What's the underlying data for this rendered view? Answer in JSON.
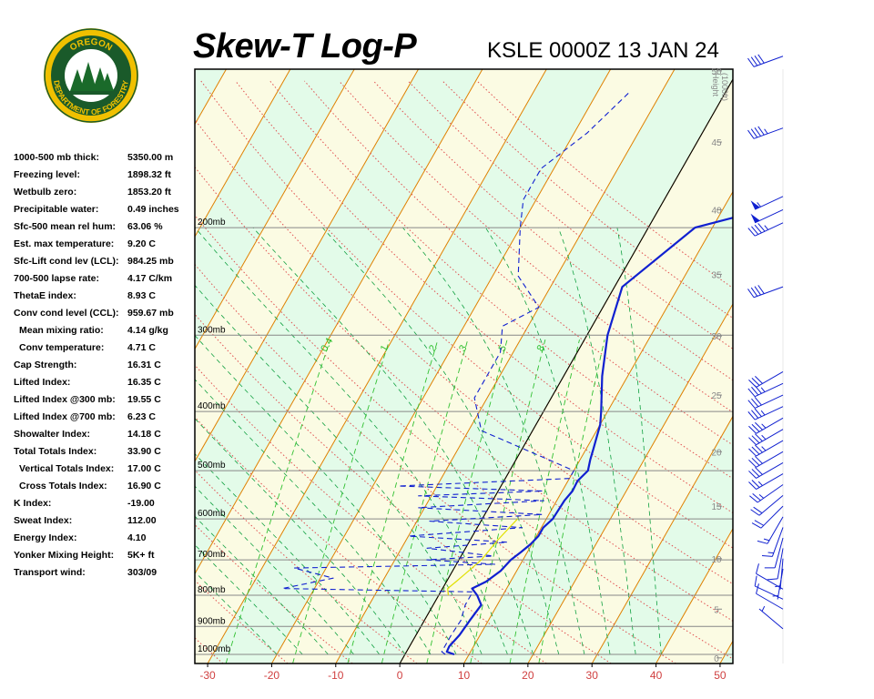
{
  "header": {
    "title": "Skew-T Log-P",
    "station": "KSLE 0000Z 13 JAN 24"
  },
  "logo": {
    "top_text": "OREGON",
    "bottom_text": "DEPARTMENT OF FORESTRY"
  },
  "indices": [
    {
      "label": "1000-500 mb thick:",
      "value": "5350.00 m",
      "indent": false
    },
    {
      "label": "Freezing level:",
      "value": "1898.32 ft",
      "indent": false
    },
    {
      "label": "Wetbulb zero:",
      "value": "1853.20 ft",
      "indent": false
    },
    {
      "label": "Precipitable water:",
      "value": "0.49 inches",
      "indent": false
    },
    {
      "label": "Sfc-500 mean rel hum:",
      "value": "63.06 %",
      "indent": false
    },
    {
      "label": "Est. max temperature:",
      "value": "9.20 C",
      "indent": false
    },
    {
      "label": "Sfc-Lift cond lev (LCL):",
      "value": "984.25 mb",
      "indent": false
    },
    {
      "label": "700-500 lapse rate:",
      "value": "4.17 C/km",
      "indent": false
    },
    {
      "label": "ThetaE index:",
      "value": "8.93 C",
      "indent": false
    },
    {
      "label": "Conv cond level (CCL):",
      "value": "959.67 mb",
      "indent": false
    },
    {
      "label": "Mean mixing ratio:",
      "value": "4.14 g/kg",
      "indent": true
    },
    {
      "label": "Conv temperature:",
      "value": "4.71 C",
      "indent": true
    },
    {
      "label": "Cap Strength:",
      "value": "16.31 C",
      "indent": false
    },
    {
      "label": "Lifted Index:",
      "value": "16.35 C",
      "indent": false
    },
    {
      "label": "Lifted Index @300 mb:",
      "value": "19.55 C",
      "indent": false
    },
    {
      "label": "Lifted Index @700 mb:",
      "value": "6.23 C",
      "indent": false
    },
    {
      "label": "Showalter Index:",
      "value": "14.18 C",
      "indent": false
    },
    {
      "label": "Total Totals Index:",
      "value": "33.90 C",
      "indent": false
    },
    {
      "label": "Vertical Totals Index:",
      "value": "17.00 C",
      "indent": true
    },
    {
      "label": "Cross Totals Index:",
      "value": "16.90 C",
      "indent": true
    },
    {
      "label": "K Index:",
      "value": "-19.00",
      "indent": false
    },
    {
      "label": "Sweat Index:",
      "value": "112.00",
      "indent": false
    },
    {
      "label": "Energy Index:",
      "value": "4.10",
      "indent": false
    },
    {
      "label": "Yonker Mixing Height:",
      "value": "5K+ ft",
      "indent": false
    },
    {
      "label": "Transport wind:",
      "value": "303/09",
      "indent": false
    }
  ],
  "chart_data": {
    "type": "line",
    "x_ticks": [
      -30,
      -20,
      -10,
      0,
      10,
      20,
      30,
      40,
      50
    ],
    "xlim": [
      -32,
      52
    ],
    "pressure_range_mb": [
      1035,
      110
    ],
    "pressure_labels": [
      {
        "p": 200,
        "label": "200mb"
      },
      {
        "p": 300,
        "label": "300mb"
      },
      {
        "p": 400,
        "label": "400mb"
      },
      {
        "p": 500,
        "label": "500mb"
      },
      {
        "p": 600,
        "label": "600mb"
      },
      {
        "p": 700,
        "label": "700mb"
      },
      {
        "p": 800,
        "label": "800mb"
      },
      {
        "p": 900,
        "label": "900mb"
      },
      {
        "p": 1000,
        "label": "1000mb"
      }
    ],
    "height_axis_title": [
      "Height",
      "(1000ft)"
    ],
    "height_ticks": [
      0,
      5,
      10,
      15,
      20,
      25,
      30,
      35,
      40,
      45,
      50
    ],
    "mixing_ratio_labels": [
      "0.4",
      "1",
      "2",
      "3",
      "5",
      "8"
    ],
    "grid": true,
    "colors": {
      "temperature": "#1020d0",
      "dewpoint": "#1020d0",
      "parcel": "#e0e000",
      "isotherm": "#e08000",
      "dry_adiabat": "#e05050",
      "moist_adiabat": "#10a040",
      "mixing_ratio": "#30c030",
      "isobar": "#888888",
      "band_warm": "#fbfbe3",
      "band_cool": "#e3fbe9",
      "wind_barb": "#1020d0",
      "axis_tick_text": "#d04040"
    },
    "series": [
      {
        "line": "temperature",
        "x": [
          7.7,
          6.3,
          6.2,
          6.8,
          7.1,
          7.5,
          6.0,
          4.6,
          6.2,
          7.5,
          8.1,
          9.0,
          9.8,
          10.3,
          10.3,
          11.0,
          11.1,
          11.2,
          11.6,
          11.5,
          12.2,
          11.6,
          11.1,
          10.0,
          9.0,
          6.0,
          3.2,
          1.2,
          7.3,
          21.5,
          26.0,
          27.0,
          28.0
        ],
        "y": [
          1000,
          990,
          970,
          930,
          880,
          830,
          800,
          780,
          760,
          730,
          700,
          680,
          660,
          640,
          620,
          600,
          580,
          560,
          540,
          520,
          500,
          480,
          460,
          420,
          400,
          350,
          300,
          250,
          200,
          180,
          160,
          140,
          120
        ]
      },
      {
        "line": "dewpoint",
        "x": [
          6.3,
          5.5,
          5.5,
          5.5,
          5.7,
          5.0,
          5.0,
          -25.0,
          -18.0,
          -25.0,
          6.0,
          -5.0,
          5.0,
          -6.0,
          6.0,
          -10.0,
          7.0,
          -8.0,
          9.0,
          -11.0,
          8.0,
          -12.0,
          7.0,
          -16.0,
          10.0,
          10.0,
          -8.0,
          -12.0,
          -12.0,
          -14.0,
          -10.0,
          -16.0,
          -20.0,
          -22.0,
          -22.0,
          -18.0,
          -15.0
        ],
        "y": [
          1000,
          990,
          970,
          930,
          880,
          830,
          790,
          780,
          750,
          722,
          712,
          700,
          690,
          670,
          655,
          640,
          620,
          605,
          590,
          575,
          560,
          550,
          540,
          530,
          515,
          500,
          430,
          380,
          320,
          290,
          270,
          240,
          200,
          180,
          160,
          140,
          120
        ]
      },
      {
        "line": "parcel",
        "x": [
          1.5,
          0.8,
          1.5,
          2.5,
          3.5,
          4.3,
          5.5
        ],
        "y": [
          800,
          780,
          760,
          730,
          700,
          650,
          600
        ]
      }
    ],
    "wind_barbs": [
      {
        "height_kft": 3,
        "dir": 310,
        "kt": 5
      },
      {
        "height_kft": 5,
        "dir": 300,
        "kt": 10
      },
      {
        "height_kft": 6,
        "dir": 295,
        "kt": 10
      },
      {
        "height_kft": 7,
        "dir": 300,
        "kt": 10
      },
      {
        "height_kft": 9,
        "dir": 190,
        "kt": 5
      },
      {
        "height_kft": 10,
        "dir": 185,
        "kt": 5
      },
      {
        "height_kft": 11,
        "dir": 190,
        "kt": 10
      },
      {
        "height_kft": 12,
        "dir": 195,
        "kt": 10
      },
      {
        "height_kft": 13,
        "dir": 200,
        "kt": 15
      },
      {
        "height_kft": 14,
        "dir": 210,
        "kt": 15
      },
      {
        "height_kft": 15,
        "dir": 225,
        "kt": 20
      },
      {
        "height_kft": 16,
        "dir": 230,
        "kt": 20
      },
      {
        "height_kft": 17,
        "dir": 235,
        "kt": 25
      },
      {
        "height_kft": 18,
        "dir": 240,
        "kt": 25
      },
      {
        "height_kft": 19,
        "dir": 240,
        "kt": 30
      },
      {
        "height_kft": 20,
        "dir": 240,
        "kt": 30
      },
      {
        "height_kft": 21,
        "dir": 240,
        "kt": 35
      },
      {
        "height_kft": 22,
        "dir": 240,
        "kt": 35
      },
      {
        "height_kft": 23,
        "dir": 240,
        "kt": 35
      },
      {
        "height_kft": 24,
        "dir": 245,
        "kt": 35
      },
      {
        "height_kft": 25,
        "dir": 245,
        "kt": 30
      },
      {
        "height_kft": 26,
        "dir": 245,
        "kt": 35
      },
      {
        "height_kft": 27,
        "dir": 240,
        "kt": 30
      },
      {
        "height_kft": 34,
        "dir": 250,
        "kt": 40
      },
      {
        "height_kft": 39,
        "dir": 245,
        "kt": 45
      },
      {
        "height_kft": 40,
        "dir": 245,
        "kt": 50
      },
      {
        "height_kft": 41,
        "dir": 245,
        "kt": 55
      },
      {
        "height_kft": 46,
        "dir": 250,
        "kt": 45
      },
      {
        "height_kft": 51,
        "dir": 250,
        "kt": 40
      }
    ]
  }
}
